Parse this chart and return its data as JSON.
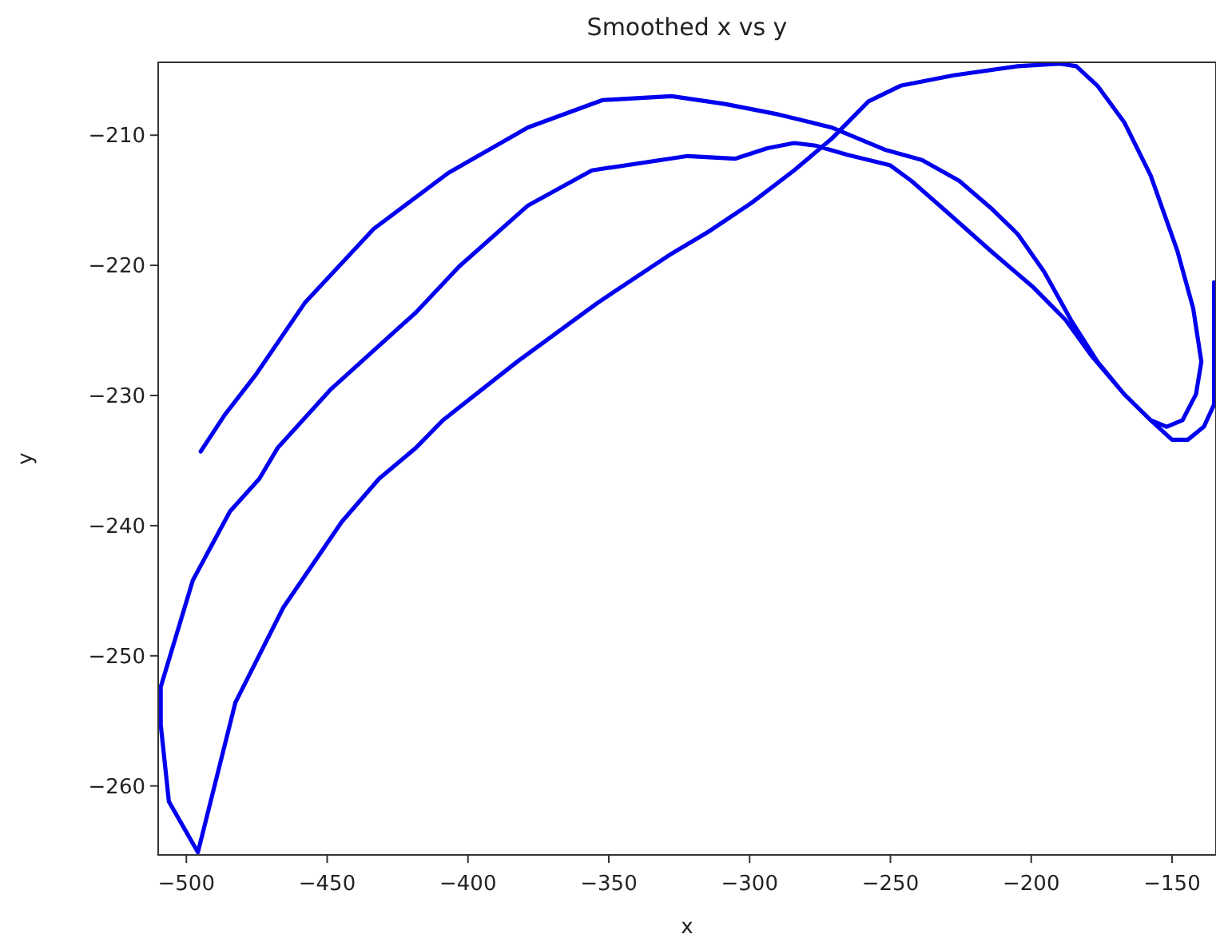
{
  "chart_data": {
    "type": "line",
    "title": "Smoothed x vs y",
    "xlabel": "x",
    "ylabel": "y",
    "xlim": [
      -510,
      -134.4
    ],
    "ylim": [
      -265.3,
      -204.4
    ],
    "xticks": [
      -500,
      -450,
      -400,
      -350,
      -300,
      -250,
      -200,
      -150
    ],
    "yticks": [
      -260,
      -250,
      -240,
      -230,
      -220,
      -210
    ],
    "grid": false,
    "marker": "none",
    "line_style": "solid",
    "series": [
      {
        "color": "#0000ee",
        "x": [
          -494.9,
          -486.4,
          -475,
          -458,
          -433.5,
          -407,
          -378.7,
          -352.2,
          -327.7,
          -308.8,
          -289.9,
          -271,
          -252.1,
          -238.8,
          -225.6,
          -214.3,
          -204.8,
          -195.4,
          -185.9,
          -176.5,
          -167,
          -157.6,
          -151.9,
          -146.3,
          -141.5,
          -139.6,
          -142.5,
          -148.1,
          -157.6,
          -167,
          -176.5,
          -184,
          -189.7,
          -204.8,
          -227.5,
          -246.4,
          -257.8,
          -271,
          -284.2,
          -299.3,
          -314.5,
          -327.7,
          -354.1,
          -382.5,
          -408.9,
          -418.4,
          -431.6,
          -444.8,
          -465.6,
          -482.6,
          -495.9,
          -506.2,
          -509.1,
          -509.1,
          -497.7,
          -484.5,
          -474.1,
          -467.5,
          -448.6,
          -418.4,
          -403.2,
          -378.7,
          -356,
          -322,
          -305,
          -293.7,
          -284.2,
          -276.6,
          -265.3,
          -250.2,
          -242.6,
          -229.4,
          -214.3,
          -199.2,
          -187.8,
          -178.4,
          -167,
          -157.6,
          -150,
          -144.4,
          -138.7,
          -135.1,
          -135.1
        ],
        "values": [
          -234.3,
          -231.5,
          -228.3,
          -222.9,
          -217.2,
          -212.9,
          -209.4,
          -207.3,
          -207,
          -207.6,
          -208.4,
          -209.4,
          -211.1,
          -211.9,
          -213.5,
          -215.6,
          -217.6,
          -220.5,
          -224.2,
          -227.4,
          -229.9,
          -231.9,
          -232.4,
          -231.9,
          -229.9,
          -227.4,
          -223.3,
          -218.9,
          -213.1,
          -209,
          -206.2,
          -204.7,
          -204.5,
          -204.7,
          -205.4,
          -206.2,
          -207.4,
          -210.3,
          -212.7,
          -215.2,
          -217.4,
          -219.1,
          -222.9,
          -227.4,
          -231.9,
          -234,
          -236.4,
          -239.7,
          -246.3,
          -253.6,
          -265.1,
          -261.2,
          -255.3,
          -252.4,
          -244.2,
          -238.9,
          -236.4,
          -234,
          -229.5,
          -223.6,
          -220.1,
          -215.4,
          -212.7,
          -211.6,
          -211.8,
          -211,
          -210.6,
          -210.8,
          -211.5,
          -212.3,
          -213.5,
          -216,
          -218.9,
          -221.7,
          -224.2,
          -227,
          -229.9,
          -231.9,
          -233.4,
          -233.4,
          -232.4,
          -230.7,
          -221.3
        ]
      }
    ]
  }
}
